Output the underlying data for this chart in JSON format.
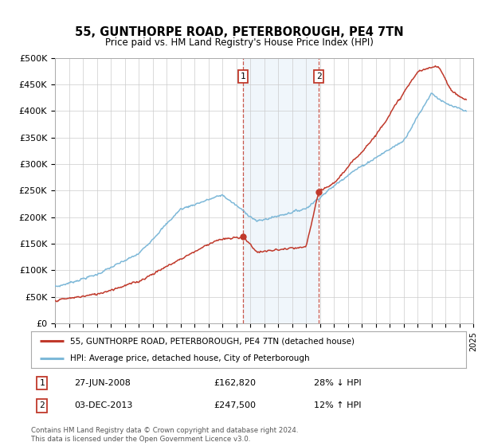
{
  "title": "55, GUNTHORPE ROAD, PETERBOROUGH, PE4 7TN",
  "subtitle": "Price paid vs. HM Land Registry's House Price Index (HPI)",
  "ylim": [
    0,
    500000
  ],
  "yticks": [
    0,
    50000,
    100000,
    150000,
    200000,
    250000,
    300000,
    350000,
    400000,
    450000,
    500000
  ],
  "ytick_labels": [
    "£0",
    "£50K",
    "£100K",
    "£150K",
    "£200K",
    "£250K",
    "£300K",
    "£350K",
    "£400K",
    "£450K",
    "£500K"
  ],
  "purchase1_date": 2008.49,
  "purchase1_price": 162820,
  "purchase1_label": "1",
  "purchase2_date": 2013.92,
  "purchase2_price": 247500,
  "purchase2_label": "2",
  "hpi_color": "#7db8d8",
  "price_color": "#c0392b",
  "background_color": "#ffffff",
  "grid_color": "#cccccc",
  "span_color": "#ddeeff",
  "legend_label1": "55, GUNTHORPE ROAD, PETERBOROUGH, PE4 7TN (detached house)",
  "legend_label2": "HPI: Average price, detached house, City of Peterborough",
  "table_row1": [
    "1",
    "27-JUN-2008",
    "£162,820",
    "28% ↓ HPI"
  ],
  "table_row2": [
    "2",
    "03-DEC-2013",
    "£247,500",
    "12% ↑ HPI"
  ],
  "footer": "Contains HM Land Registry data © Crown copyright and database right 2024.\nThis data is licensed under the Open Government Licence v3.0.",
  "xmin": 1995,
  "xmax": 2025
}
